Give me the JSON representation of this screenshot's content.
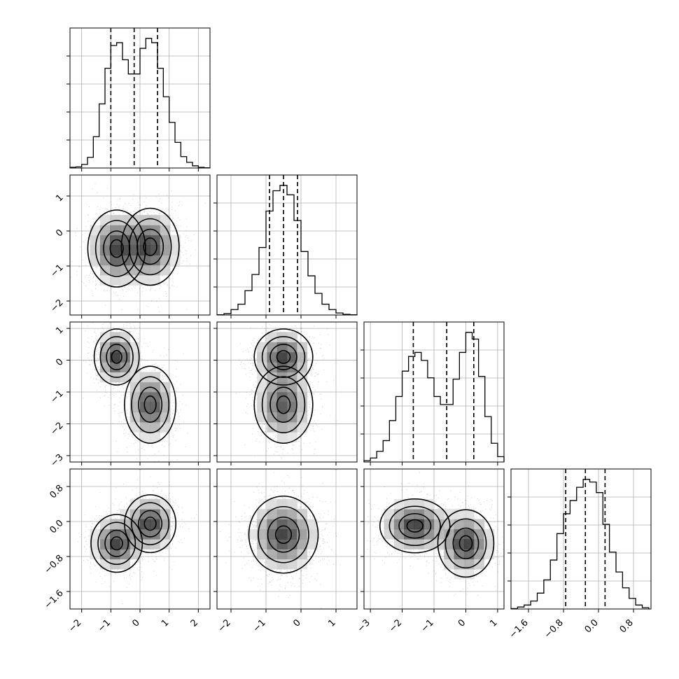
{
  "chart_data": {
    "type": "corner",
    "parameters": [
      {
        "index": 0,
        "range": [
          -2.4,
          2.4
        ],
        "ticks": [
          -2,
          -1,
          0,
          1,
          2
        ],
        "tick_labels": [
          "−2",
          "−1",
          "0",
          "1",
          "2"
        ],
        "quantiles": [
          -1.0,
          -0.2,
          0.6
        ],
        "hist": {
          "bin_edges": [
            -2.4,
            -2.2,
            -2.0,
            -1.8,
            -1.6,
            -1.4,
            -1.2,
            -1.0,
            -0.8,
            -0.6,
            -0.4,
            -0.2,
            0.0,
            0.2,
            0.4,
            0.6,
            0.8,
            1.0,
            1.2,
            1.4,
            1.6,
            1.8,
            2.0,
            2.2,
            2.4
          ],
          "counts": [
            0.5,
            0.8,
            2.5,
            7.5,
            22,
            45,
            70,
            86,
            88,
            76,
            66,
            66,
            84,
            91,
            88,
            70,
            50,
            32,
            18,
            8,
            4,
            1.5,
            0.5,
            0.2
          ]
        }
      },
      {
        "index": 1,
        "range": [
          -2.4,
          1.6
        ],
        "ticks": [
          -2,
          -1,
          0,
          1
        ],
        "tick_labels": [
          "−2",
          "−1",
          "0",
          "1"
        ],
        "quantiles": [
          -0.9,
          -0.5,
          -0.1
        ],
        "hist": {
          "bin_edges": [
            -2.4,
            -2.2,
            -2.0,
            -1.8,
            -1.6,
            -1.4,
            -1.2,
            -1.0,
            -0.8,
            -0.6,
            -0.4,
            -0.2,
            0.0,
            0.2,
            0.4,
            0.6,
            0.8,
            1.0,
            1.2,
            1.4,
            1.6
          ],
          "counts": [
            0.2,
            1,
            4,
            8,
            18,
            30,
            50,
            77,
            92,
            96,
            89,
            70,
            47,
            29,
            16,
            8,
            4,
            1.5,
            0.5,
            0.2
          ]
        }
      },
      {
        "index": 2,
        "range": [
          -3.2,
          1.2
        ],
        "ticks": [
          -3,
          -2,
          -1,
          0,
          1
        ],
        "tick_labels": [
          "−3",
          "−2",
          "−1",
          "0",
          "1"
        ],
        "quantiles": [
          -1.65,
          -0.6,
          0.25
        ],
        "hist": {
          "bin_edges": [
            -3.2,
            -3.0,
            -2.8,
            -2.6,
            -2.4,
            -2.2,
            -2.0,
            -1.8,
            -1.6,
            -1.4,
            -1.2,
            -1.0,
            -0.8,
            -0.6,
            -0.4,
            -0.2,
            0.0,
            0.2,
            0.4,
            0.6,
            0.8,
            1.0,
            1.2
          ],
          "counts": [
            1,
            3,
            8,
            16,
            31,
            49,
            68,
            79,
            82,
            76,
            63,
            49,
            43,
            43,
            62,
            82,
            97,
            92,
            64,
            34,
            14,
            4
          ]
        }
      },
      {
        "index": 3,
        "range": [
          -2.0,
          1.2
        ],
        "ticks": [
          -1.6,
          -0.8,
          0.0,
          0.8
        ],
        "tick_labels": [
          "−1.6",
          "−0.8",
          "0.0",
          "0.8"
        ],
        "quantiles": [
          -0.75,
          -0.3,
          0.15
        ],
        "hist": {
          "bin_edges": [
            -2.0,
            -1.85,
            -1.7,
            -1.55,
            -1.4,
            -1.25,
            -1.1,
            -0.95,
            -0.8,
            -0.65,
            -0.5,
            -0.35,
            -0.2,
            -0.05,
            0.1,
            0.25,
            0.4,
            0.55,
            0.7,
            0.85,
            1.0,
            1.15
          ],
          "counts": [
            0.3,
            1.5,
            3,
            6,
            12,
            22,
            37,
            57,
            72,
            82,
            92,
            98,
            96,
            88,
            64,
            43,
            28,
            16,
            8,
            3,
            1
          ]
        }
      }
    ],
    "pairs": [
      {
        "xi": 0,
        "yi": 1,
        "modes": [
          {
            "cx": -0.8,
            "cy": -0.5,
            "sx": 0.45,
            "sy": 0.5,
            "w": 1
          },
          {
            "cx": 0.35,
            "cy": -0.45,
            "sx": 0.45,
            "sy": 0.5,
            "w": 1
          }
        ]
      },
      {
        "xi": 0,
        "yi": 2,
        "modes": [
          {
            "cx": -0.8,
            "cy": 0.1,
            "sx": 0.35,
            "sy": 0.4,
            "w": 1
          },
          {
            "cx": 0.35,
            "cy": -1.4,
            "sx": 0.4,
            "sy": 0.55,
            "w": 0.9
          }
        ]
      },
      {
        "xi": 1,
        "yi": 2,
        "modes": [
          {
            "cx": -0.5,
            "cy": 0.1,
            "sx": 0.38,
            "sy": 0.4,
            "w": 1
          },
          {
            "cx": -0.5,
            "cy": -1.4,
            "sx": 0.38,
            "sy": 0.55,
            "w": 0.9
          }
        ]
      },
      {
        "xi": 0,
        "yi": 3,
        "modes": [
          {
            "cx": -0.8,
            "cy": -0.5,
            "sx": 0.4,
            "sy": 0.3,
            "w": 1
          },
          {
            "cx": 0.35,
            "cy": -0.05,
            "sx": 0.4,
            "sy": 0.3,
            "w": 1
          }
        ]
      },
      {
        "xi": 1,
        "yi": 3,
        "modes": [
          {
            "cx": -0.5,
            "cy": -0.3,
            "sx": 0.45,
            "sy": 0.4,
            "w": 1
          }
        ]
      },
      {
        "xi": 2,
        "yi": 3,
        "modes": [
          {
            "cx": -1.6,
            "cy": -0.1,
            "sx": 0.5,
            "sy": 0.28,
            "w": 1
          },
          {
            "cx": 0.0,
            "cy": -0.5,
            "sx": 0.4,
            "sy": 0.35,
            "w": 1
          }
        ]
      }
    ],
    "contour_levels": 4,
    "grid": true,
    "scatter": true,
    "histtype": "step",
    "quantile_lines": "dashed"
  }
}
